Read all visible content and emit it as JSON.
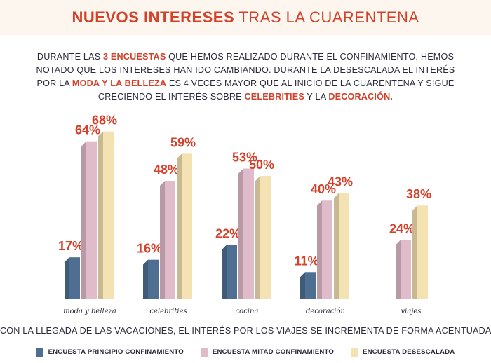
{
  "header": {
    "title_bold": "NUEVOS INTERESES",
    "title_rest": " TRAS LA CUARENTENA"
  },
  "intro": {
    "p1": "DURANTE LAS ",
    "h1": "3 ENCUESTAS",
    "p2": " QUE HEMOS REALIZADO DURANTE EL CONFINAMIENTO, HEMOS NOTADO QUE LOS INTERESES HAN IDO CAMBIANDO. DURANTE LA DESESCALADA EL INTERÉS POR LA ",
    "h2": "MODA Y LA BELLEZA",
    "p3": " ES 4 VECES MAYOR QUE AL INICIO DE LA CUARENTENA Y SIGUE CRECIENDO EL INTERÉS SOBRE ",
    "h3": "CELEBRITIES",
    "p4": " Y LA ",
    "h4": "DECORACIÓN."
  },
  "footer_note": "CON LA LLEGADA DE LAS VACACIONES, EL INTERÉS POR LOS VIAJES SE INCREMENTA DE FORMA ACENTUADA",
  "colors": {
    "accent": "#d4412a",
    "series_1": "#4e6f91",
    "series_2": "#e0bccb",
    "series_3": "#f5e2b2"
  },
  "chart_data": {
    "type": "bar",
    "categories": [
      "moda y belleza",
      "celebrities",
      "cocina",
      "decoración",
      "viajes"
    ],
    "series": [
      {
        "name": "ENCUESTA PRINCIPIO CONFINAMIENTO",
        "values": [
          17,
          16,
          22,
          11,
          null
        ]
      },
      {
        "name": "ENCUESTA MITAD CONFINAMIENTO",
        "values": [
          64,
          48,
          53,
          40,
          24
        ]
      },
      {
        "name": "ENCUESTA DESESCALADA",
        "values": [
          68,
          59,
          50,
          43,
          38
        ]
      }
    ],
    "value_labels": [
      [
        "17%",
        "64%",
        "68%"
      ],
      [
        "16%",
        "48%",
        "59%"
      ],
      [
        "22%",
        "53%",
        "50%"
      ],
      [
        "11%",
        "40%",
        "43%"
      ],
      [
        "",
        "24%",
        "38%"
      ]
    ],
    "ylim": [
      0,
      80
    ],
    "grid": false,
    "legend_position": "bottom"
  }
}
